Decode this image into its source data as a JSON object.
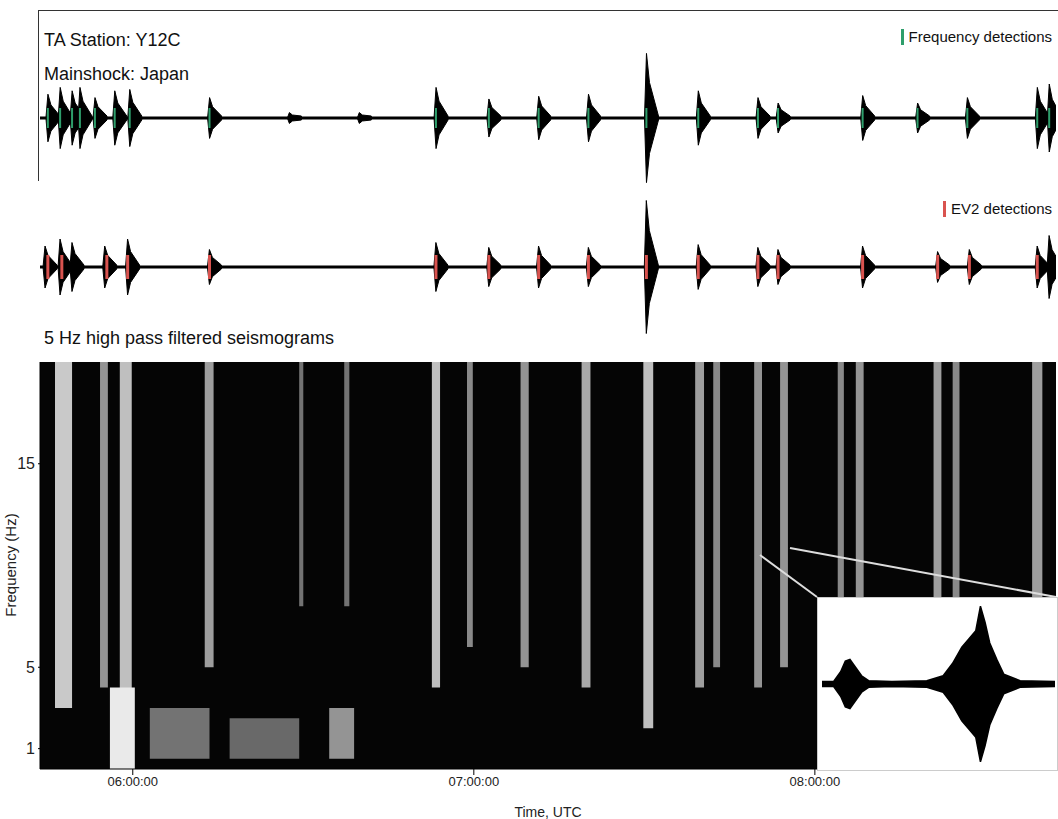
{
  "chart_data": [
    {
      "type": "bar",
      "title": "TA Station: Y12C",
      "subtitle": "Mainshock: Japan",
      "x": [
        5.751,
        5.787,
        5.822,
        5.845,
        5.889,
        5.947,
        5.991,
        6.225,
        6.459,
        6.664,
        6.889,
        7.044,
        7.19,
        7.336,
        7.506,
        7.658,
        7.833,
        7.892,
        8.14,
        8.301,
        8.447,
        8.652,
        8.687
      ],
      "values": [
        0.35,
        0.45,
        0.4,
        0.45,
        0.3,
        0.4,
        0.42,
        0.3,
        0.08,
        0.08,
        0.45,
        0.28,
        0.32,
        0.35,
        0.95,
        0.4,
        0.3,
        0.22,
        0.33,
        0.22,
        0.3,
        0.45,
        0.5
      ],
      "color": "#000000",
      "xlim": [
        5.728,
        8.707
      ],
      "ylim": [
        -1,
        1
      ],
      "tick_labels": false,
      "detections": {
        "name": "Frequency detections",
        "color": "#2e9e6b",
        "x": [
          5.751,
          5.787,
          5.822,
          5.845,
          5.889,
          5.947,
          5.991,
          6.225,
          6.889,
          7.044,
          7.19,
          7.336,
          7.506,
          7.658,
          7.833,
          7.892,
          8.14,
          8.301,
          8.447,
          8.652,
          8.687
        ]
      }
    },
    {
      "type": "bar",
      "title": "5 Hz high pass filtered seismograms",
      "x": [
        5.743,
        5.787,
        5.822,
        5.918,
        5.985,
        6.225,
        6.889,
        7.044,
        7.19,
        7.336,
        7.506,
        7.658,
        7.833,
        7.892,
        8.14,
        8.36,
        8.453,
        8.652,
        8.687
      ],
      "values": [
        0.3,
        0.4,
        0.35,
        0.3,
        0.4,
        0.25,
        0.35,
        0.28,
        0.3,
        0.28,
        0.95,
        0.32,
        0.28,
        0.25,
        0.3,
        0.22,
        0.25,
        0.3,
        0.45
      ],
      "color": "#000000",
      "xlim": [
        5.728,
        8.707
      ],
      "ylim": [
        -1,
        1
      ],
      "tick_labels": false,
      "detections": {
        "name": "EV2 detections",
        "color": "#d9534f",
        "x": [
          5.751,
          5.792,
          5.924,
          5.985,
          6.225,
          6.889,
          7.044,
          7.19,
          7.336,
          7.506,
          7.658,
          7.833,
          7.892,
          8.14,
          8.36,
          8.453,
          8.652
        ]
      }
    },
    {
      "type": "heatmap",
      "xlabel": "Time, UTC",
      "ylabel": "Frequency (Hz)",
      "xlim": [
        5.728,
        8.707
      ],
      "ylim": [
        0,
        20
      ],
      "xticks": [
        {
          "value": 6,
          "label": "06:00:00"
        },
        {
          "value": 7,
          "label": "07:00:00"
        },
        {
          "value": 8,
          "label": "08:00:00"
        }
      ],
      "yticks": [
        1,
        5,
        15
      ],
      "patches": {
        "t_start": [
          5.772,
          5.904,
          5.962,
          6.211,
          6.488,
          6.62,
          6.877,
          6.98,
          7.137,
          7.316,
          7.497,
          7.649,
          7.702,
          7.822,
          7.898,
          8.067,
          8.12,
          8.348,
          8.404,
          8.637,
          5.933,
          6.05,
          6.284,
          6.576
        ],
        "t_end": [
          5.822,
          5.927,
          5.997,
          6.237,
          6.5,
          6.635,
          6.901,
          6.997,
          7.161,
          7.342,
          7.526,
          7.675,
          7.722,
          7.845,
          7.921,
          8.085,
          8.143,
          8.371,
          8.424,
          8.667,
          6.006,
          6.225,
          6.488,
          6.649
        ],
        "f_low": [
          3,
          4,
          3,
          5,
          8,
          8,
          4,
          6,
          5,
          4,
          2,
          4,
          5,
          4,
          5,
          6,
          5,
          5,
          6,
          4,
          0,
          0.5,
          0.5,
          0.5
        ],
        "f_high": [
          20,
          20,
          20,
          20,
          20,
          20,
          20,
          20,
          20,
          20,
          20,
          20,
          20,
          20,
          20,
          20,
          20,
          20,
          20,
          20,
          4,
          3,
          2.5,
          3
        ],
        "intensity": [
          0.75,
          0.5,
          0.7,
          0.55,
          0.35,
          0.35,
          0.7,
          0.45,
          0.5,
          0.6,
          0.7,
          0.55,
          0.45,
          0.5,
          0.5,
          0.45,
          0.5,
          0.55,
          0.45,
          0.55,
          0.9,
          0.35,
          0.3,
          0.5
        ]
      }
    },
    {
      "type": "area",
      "x": [
        0,
        0.05,
        0.08,
        0.1,
        0.12,
        0.14,
        0.17,
        0.2,
        0.3,
        0.45,
        0.52,
        0.56,
        0.6,
        0.63,
        0.66,
        0.68,
        0.7,
        0.72,
        0.75,
        0.78,
        0.85,
        1
      ],
      "values": [
        0.03,
        0.03,
        0.15,
        0.28,
        0.3,
        0.22,
        0.1,
        0.04,
        0.03,
        0.04,
        0.1,
        0.25,
        0.45,
        0.55,
        0.65,
        0.95,
        0.75,
        0.5,
        0.3,
        0.12,
        0.04,
        0.03
      ],
      "color": "#000000",
      "xlim": [
        0,
        1
      ],
      "ylim": [
        -1,
        1
      ],
      "tick_labels": false
    }
  ]
}
